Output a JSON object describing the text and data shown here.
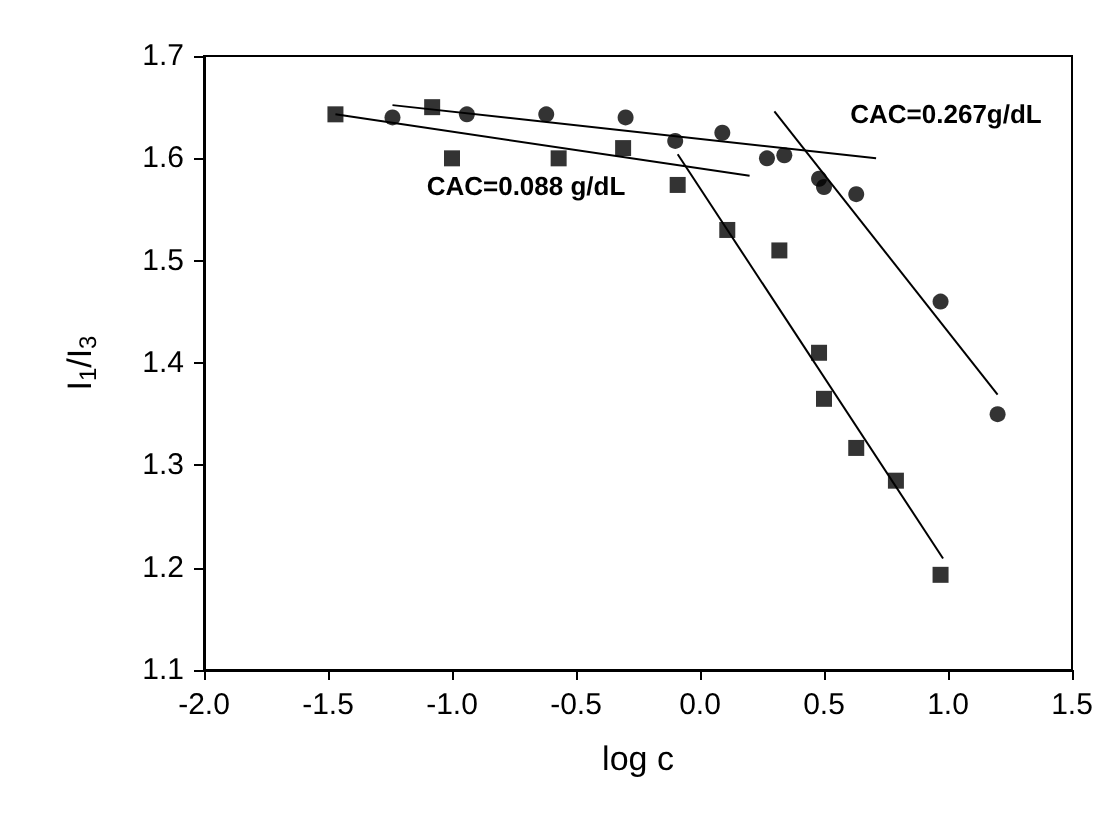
{
  "chart_data": {
    "type": "scatter",
    "xlabel": "log c",
    "ylabel": "I$_{1}$/I$_{3}$",
    "xlim": [
      -2,
      1.5
    ],
    "ylim": [
      1.1,
      1.7
    ],
    "xticks": [
      {
        "value": -2,
        "label": "-2.0"
      },
      {
        "value": -1.5,
        "label": "-1.5"
      },
      {
        "value": -1,
        "label": "-1.0"
      },
      {
        "value": -0.5,
        "label": "-0.5"
      },
      {
        "value": 0,
        "label": "0.0"
      },
      {
        "value": 0.5,
        "label": "0.5"
      },
      {
        "value": 1,
        "label": "1.0"
      },
      {
        "value": 1.5,
        "label": "1.5"
      }
    ],
    "yticks": [
      1.1,
      1.2,
      1.3,
      1.4,
      1.5,
      1.6,
      1.7
    ],
    "grid": false,
    "series": [
      {
        "type": "scatter",
        "marker": "square",
        "color": "#000000",
        "x": [
          -1.47,
          -1.08,
          -1.0,
          -0.57,
          -0.31,
          -0.09,
          0.11,
          0.32,
          0.48,
          0.5,
          0.63,
          0.79,
          0.97
        ],
        "values": [
          1.643,
          1.65,
          1.6,
          1.6,
          1.61,
          1.574,
          1.53,
          1.51,
          1.41,
          1.365,
          1.317,
          1.285,
          1.193
        ]
      },
      {
        "type": "scatter",
        "marker": "circle",
        "color": "#000000",
        "x": [
          -1.24,
          -0.94,
          -0.62,
          -0.3,
          -0.1,
          0.09,
          0.27,
          0.34,
          0.48,
          0.5,
          0.63,
          0.97,
          1.2
        ],
        "values": [
          1.64,
          1.643,
          1.643,
          1.64,
          1.617,
          1.625,
          1.6,
          1.603,
          1.58,
          1.572,
          1.565,
          1.46,
          1.35
        ]
      },
      {
        "type": "line",
        "marker": "none",
        "color": "#000000",
        "x": [
          -1.47,
          0.2
        ],
        "values": [
          1.643,
          1.583
        ]
      },
      {
        "type": "line",
        "marker": "none",
        "color": "#000000",
        "x": [
          -0.09,
          0.98
        ],
        "values": [
          1.604,
          1.209
        ]
      },
      {
        "type": "line",
        "marker": "none",
        "color": "#000000",
        "x": [
          -1.24,
          0.71
        ],
        "values": [
          1.652,
          1.6
        ]
      },
      {
        "type": "line",
        "marker": "none",
        "color": "#000000",
        "x": [
          0.3,
          1.2
        ],
        "values": [
          1.646,
          1.369
        ]
      }
    ],
    "annotations": [
      "CAC=0.267g/dL",
      "CAC=0.088 g/dL"
    ]
  }
}
